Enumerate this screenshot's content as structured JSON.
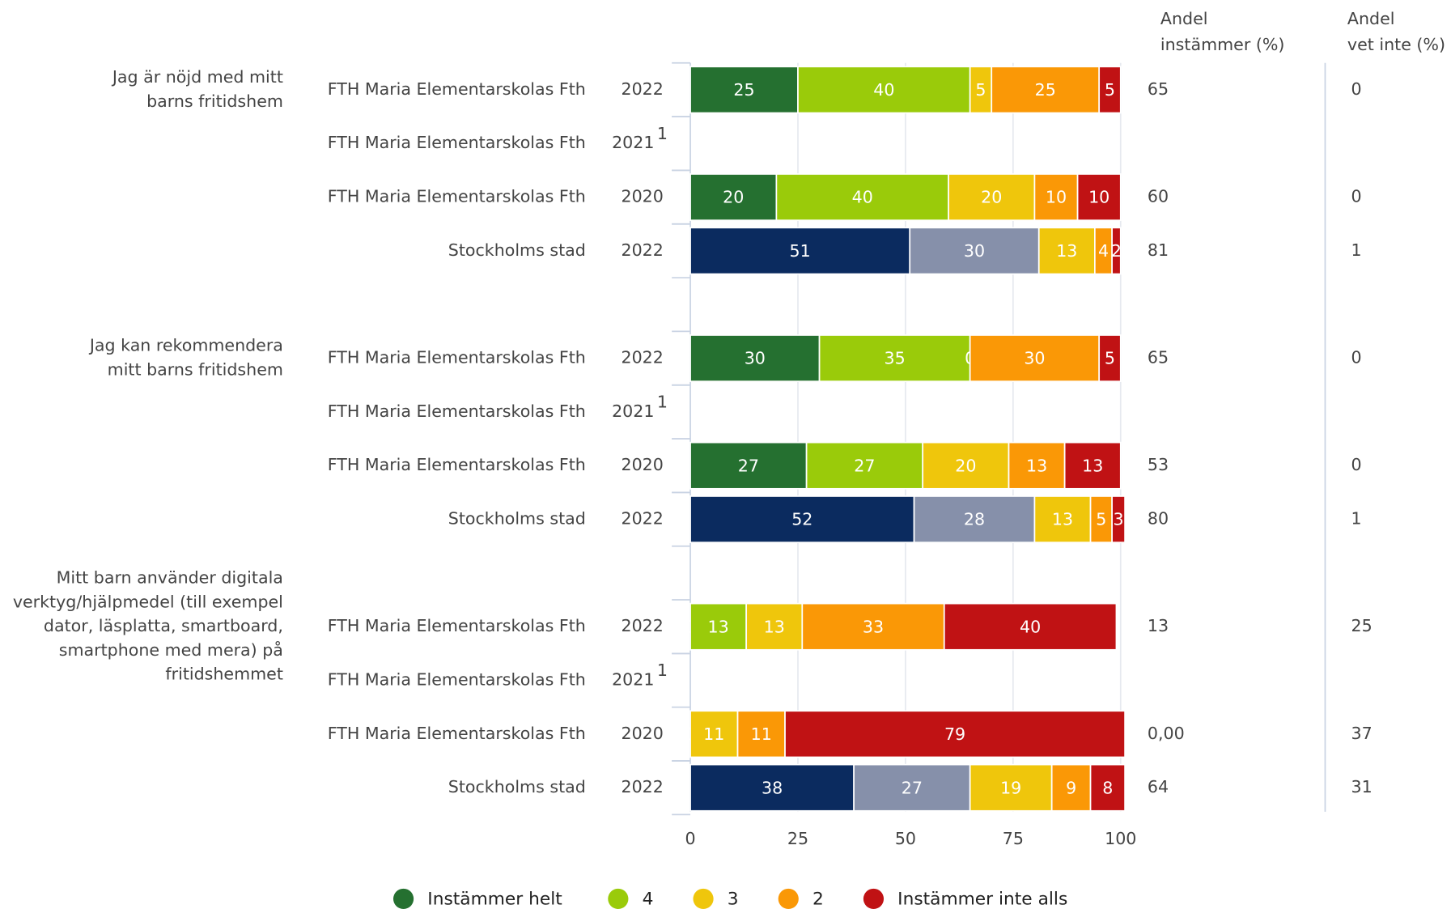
{
  "chart_data": {
    "type": "stacked_bar_h",
    "questions": [
      [
        "Jag är nöjd med mitt",
        "barns fritidshem"
      ],
      [
        "Jag kan rekommendera",
        "mitt barns fritidshem"
      ],
      [
        "Mitt barn använder digitala",
        "verktyg/hjälpmedel (till exempel",
        "dator, läsplatta, smartboard,",
        "smartphone med mera) på",
        "fritidshemmet"
      ]
    ],
    "rows": [
      {
        "question": 0,
        "entity": "FTH Maria Elementarskolas Fth",
        "year": "2022"
      },
      {
        "question": 0,
        "entity": "FTH Maria Elementarskolas Fth",
        "year": "2021",
        "note": "1"
      },
      {
        "question": 0,
        "entity": "FTH Maria Elementarskolas Fth",
        "year": "2020"
      },
      {
        "question": 0,
        "entity": "Stockholms stad",
        "year": "2022"
      },
      {
        "question": 1,
        "entity": "FTH Maria Elementarskolas Fth",
        "year": "2022"
      },
      {
        "question": 1,
        "entity": "FTH Maria Elementarskolas Fth",
        "year": "2021",
        "note": "1"
      },
      {
        "question": 1,
        "entity": "FTH Maria Elementarskolas Fth",
        "year": "2020"
      },
      {
        "question": 1,
        "entity": "Stockholms stad",
        "year": "2022"
      },
      {
        "question": 2,
        "entity": "FTH Maria Elementarskolas Fth",
        "year": "2022"
      },
      {
        "question": 2,
        "entity": "FTH Maria Elementarskolas Fth",
        "year": "2021",
        "note": "1"
      },
      {
        "question": 2,
        "entity": "FTH Maria Elementarskolas Fth",
        "year": "2020"
      },
      {
        "question": 2,
        "entity": "Stockholms stad",
        "year": "2022"
      }
    ],
    "alt_rows": [
      3,
      7,
      11
    ],
    "series": [
      {
        "name": "Instämmer helt",
        "color": "#257030",
        "alt_color": "#0b2b5f",
        "values": [
          25,
          null,
          20,
          51,
          30,
          null,
          27,
          52,
          0,
          null,
          null,
          38
        ]
      },
      {
        "name": "4",
        "color": "#9acb0a",
        "alt_color": "#8690aa",
        "values": [
          40,
          null,
          40,
          30,
          35,
          null,
          27,
          28,
          13,
          null,
          0,
          27
        ]
      },
      {
        "name": "3",
        "color": "#efc60c",
        "alt_color": "#efc60c",
        "values": [
          5,
          null,
          20,
          13,
          0,
          null,
          20,
          13,
          13,
          null,
          11,
          19
        ]
      },
      {
        "name": "2",
        "color": "#fa9806",
        "alt_color": "#fa9806",
        "values": [
          25,
          null,
          10,
          4,
          30,
          null,
          13,
          5,
          33,
          null,
          11,
          9
        ]
      },
      {
        "name": "Instämmer inte alls",
        "color": "#c01214",
        "alt_color": "#c01214",
        "values": [
          5,
          null,
          10,
          2,
          5,
          null,
          13,
          3,
          40,
          null,
          79,
          8
        ]
      }
    ],
    "columns": [
      {
        "header": [
          "Andel",
          "instämmer (%)"
        ],
        "values": [
          65,
          null,
          60,
          81,
          65,
          null,
          53,
          80,
          13,
          null,
          {
            "value": 0,
            "label": "0,00"
          },
          64
        ]
      },
      {
        "header": [
          "Andel",
          "vet inte (%)"
        ],
        "values": [
          0,
          null,
          0,
          1,
          0,
          null,
          0,
          1,
          25,
          null,
          37,
          31
        ]
      }
    ],
    "xlim": [
      0,
      100
    ],
    "xticks": [
      0,
      25,
      50,
      75,
      100
    ],
    "grid": true
  }
}
